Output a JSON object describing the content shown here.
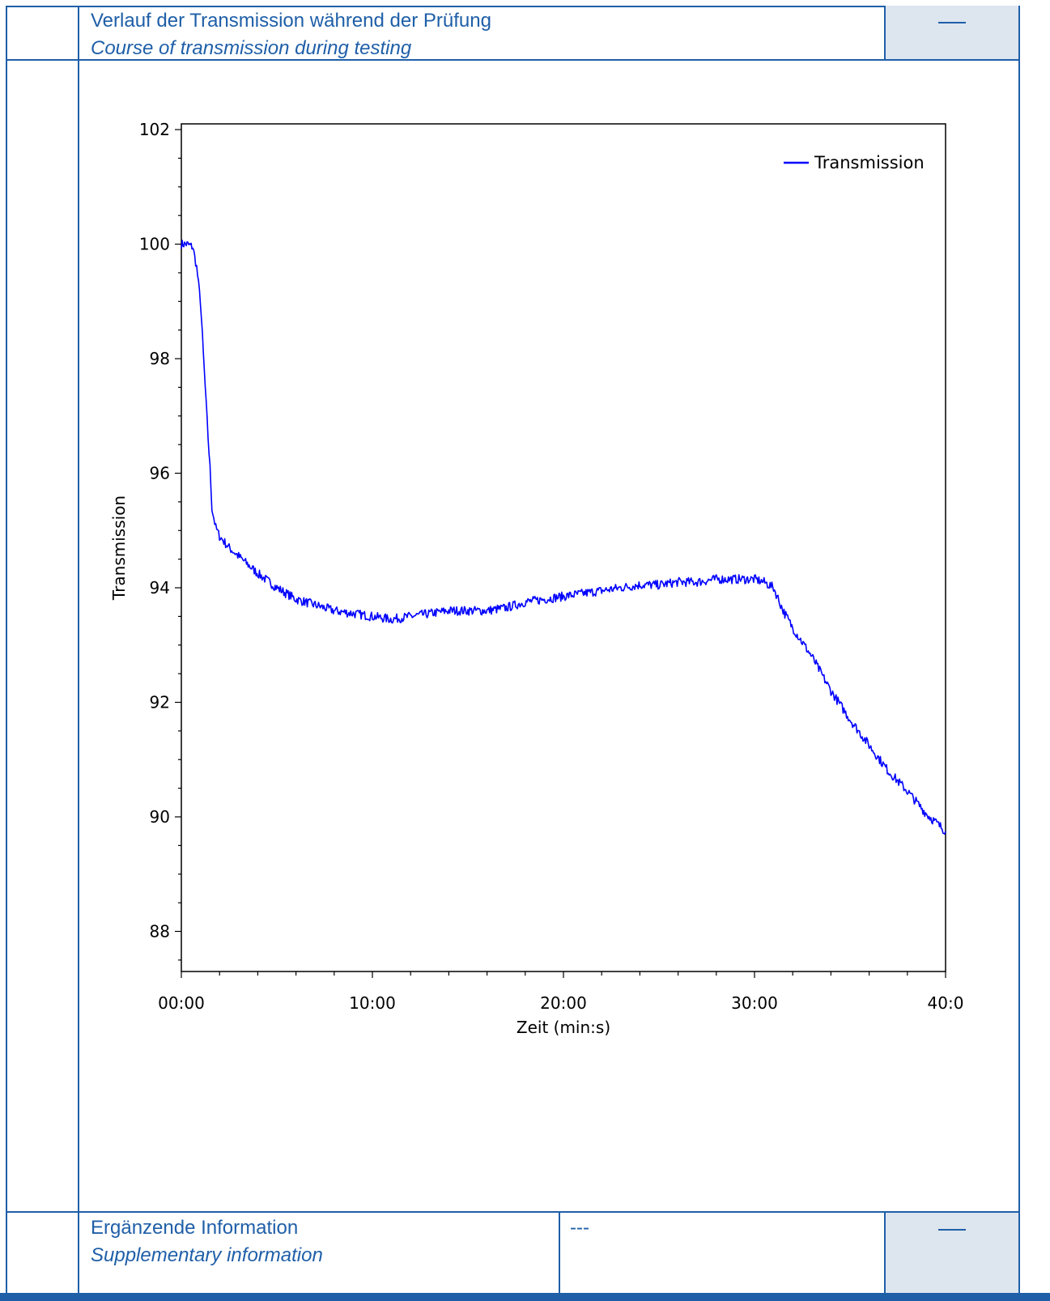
{
  "header": {
    "title_de": "Verlauf der Transmission während der Prüfung",
    "title_en": "Course of transmission during testing",
    "marker": "—"
  },
  "footer": {
    "label_de": "Ergänzende Information",
    "label_en": "Supplementary information",
    "value": "---",
    "marker": "—"
  },
  "colors": {
    "border": "#1f5fa8",
    "shade": "#dde5ef",
    "series": "#0000ff"
  },
  "chart_data": {
    "type": "line",
    "title": "",
    "xlabel": "Zeit (min:s)",
    "ylabel": "Transmission",
    "xlim": [
      0,
      40
    ],
    "ylim": [
      87.3,
      102.1
    ],
    "xticks": [
      0,
      10,
      20,
      30,
      40
    ],
    "xtick_labels": [
      "00:00",
      "10:00",
      "20:00",
      "30:00",
      "40:0"
    ],
    "yticks": [
      88,
      90,
      92,
      94,
      96,
      98,
      100,
      102
    ],
    "ytick_labels": [
      "88",
      "90",
      "92",
      "94",
      "96",
      "98",
      "100",
      "102"
    ],
    "legend_position": "top-right",
    "grid": false,
    "series": [
      {
        "name": "Transmission",
        "x": [
          0,
          0.3,
          0.6,
          0.8,
          1.0,
          1.2,
          1.35,
          1.5,
          1.6,
          1.8,
          2.0,
          2.5,
          3.0,
          4.0,
          5.0,
          6.0,
          7.0,
          8.0,
          9.0,
          10.0,
          11.0,
          12.0,
          13.0,
          14.0,
          15.0,
          16.0,
          17.0,
          18.0,
          19.0,
          20.0,
          21.0,
          22.0,
          23.0,
          24.0,
          25.0,
          26.0,
          27.0,
          28.0,
          29.0,
          30.0,
          30.5,
          31.0,
          31.5,
          32.0,
          33.0,
          34.0,
          35.0,
          36.0,
          37.0,
          38.0,
          39.0,
          40.0
        ],
        "values": [
          100.0,
          100.0,
          99.95,
          99.6,
          99.0,
          97.8,
          96.9,
          96.1,
          95.4,
          95.05,
          94.9,
          94.7,
          94.55,
          94.25,
          94.0,
          93.8,
          93.7,
          93.6,
          93.55,
          93.5,
          93.45,
          93.5,
          93.55,
          93.6,
          93.6,
          93.6,
          93.65,
          93.75,
          93.8,
          93.85,
          93.9,
          93.95,
          94.0,
          94.05,
          94.05,
          94.1,
          94.1,
          94.15,
          94.15,
          94.15,
          94.1,
          94.0,
          93.6,
          93.3,
          92.8,
          92.2,
          91.7,
          91.25,
          90.8,
          90.45,
          90.05,
          89.75
        ]
      }
    ]
  }
}
